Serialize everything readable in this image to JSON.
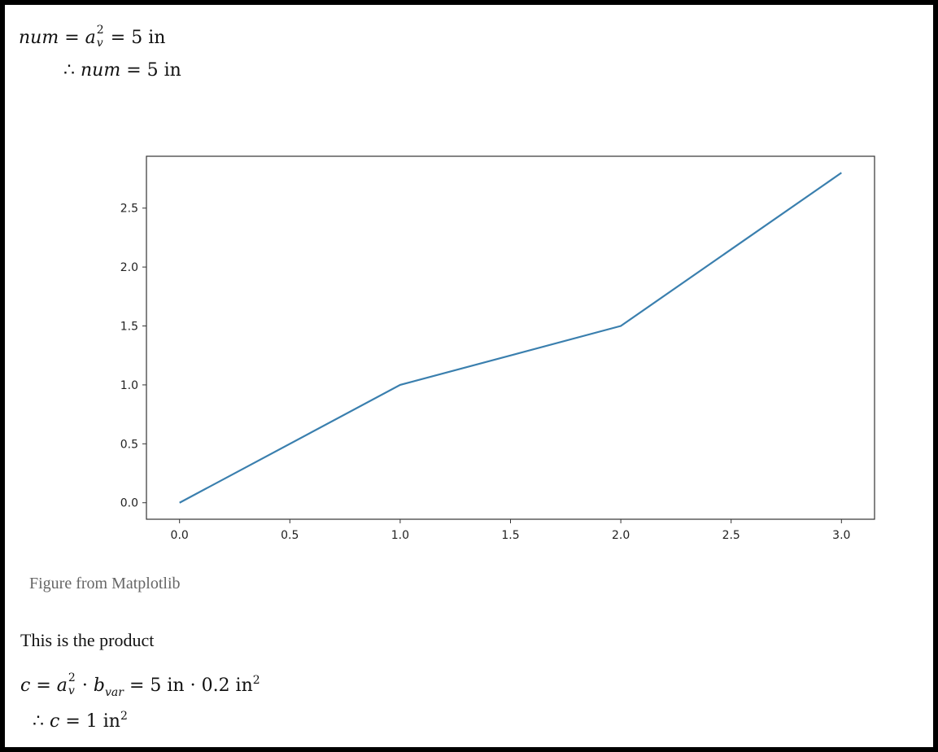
{
  "equations": {
    "eq1": {
      "lhs": "num",
      "base": "a",
      "sup": "2",
      "sub": "v",
      "rhs": "5 in"
    },
    "eq2": {
      "therefore": "∴",
      "var": "num",
      "rhs": "5 in"
    },
    "eq3": {
      "lhs": "c",
      "base": "a",
      "sup": "2",
      "sub": "v",
      "b": "b",
      "bsub": "var",
      "rhs1": "5 in",
      "rhs2": "0.2 in",
      "rhs2sup": "2"
    },
    "eq4": {
      "therefore": "∴",
      "var": "c",
      "rhs": "1 in",
      "sup": "2"
    }
  },
  "figure_caption": "Figure from Matplotlib",
  "paragraph": "This is the product",
  "chart_data": {
    "type": "line",
    "x": [
      0,
      1,
      2,
      3
    ],
    "series": [
      {
        "values": [
          0,
          1,
          1.5,
          2.8
        ],
        "color": "#3a7fae"
      }
    ],
    "xlim": [
      -0.15,
      3.15
    ],
    "ylim": [
      -0.14,
      2.94
    ],
    "xticks": [
      "0.0",
      "0.5",
      "1.0",
      "1.5",
      "2.0",
      "2.5",
      "3.0"
    ],
    "yticks": [
      "0.0",
      "0.5",
      "1.0",
      "1.5",
      "2.0",
      "2.5"
    ],
    "grid": false,
    "title": "",
    "xlabel": "",
    "ylabel": ""
  }
}
